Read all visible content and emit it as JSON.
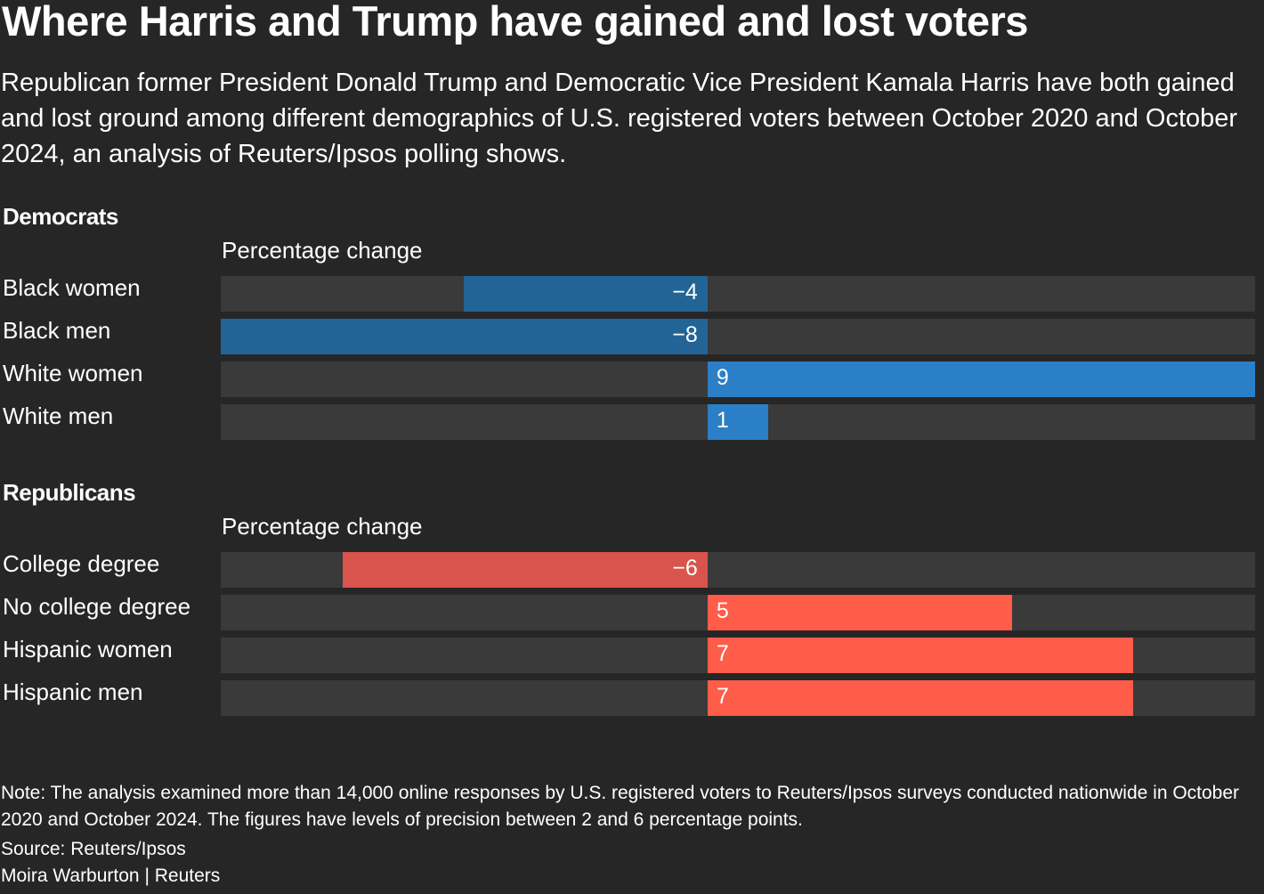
{
  "header": {
    "title": "Where Harris and Trump have gained and lost voters",
    "subtitle": "Republican former President Donald Trump and Democratic Vice President Kamala Harris have both gained and lost ground among different demographics of U.S. registered voters between October 2020 and October 2024, an analysis of Reuters/Ipsos polling shows."
  },
  "chart_data": [
    {
      "type": "bar",
      "orientation": "horizontal",
      "title": "Democrats",
      "xlabel": "Percentage change",
      "xlim": [
        -8,
        9
      ],
      "categories": [
        "Black women",
        "Black men",
        "White women",
        "White men"
      ],
      "values": [
        -4,
        -8,
        9,
        1
      ],
      "value_labels": [
        "−4",
        "−8",
        "9",
        "1"
      ],
      "colors": {
        "negative": "#226496",
        "positive": "#2b7fc6",
        "track": "#3a3a3a"
      }
    },
    {
      "type": "bar",
      "orientation": "horizontal",
      "title": "Republicans",
      "xlabel": "Percentage change",
      "xlim": [
        -8,
        9
      ],
      "categories": [
        "College degree",
        "No college degree",
        "Hispanic women",
        "Hispanic men"
      ],
      "values": [
        -6,
        5,
        7,
        7
      ],
      "value_labels": [
        "−6",
        "5",
        "7",
        "7"
      ],
      "colors": {
        "negative": "#d9544c",
        "positive": "#ff5c4a",
        "track": "#3a3a3a"
      }
    }
  ],
  "footer": {
    "note": "Note: The analysis examined more than 14,000 online responses by U.S. registered voters to Reuters/Ipsos surveys conducted nationwide in October 2020 and October 2024. The figures have levels of precision between 2 and 6 percentage points.",
    "source": "Source: Reuters/Ipsos",
    "credit": "Moira Warburton | Reuters"
  }
}
